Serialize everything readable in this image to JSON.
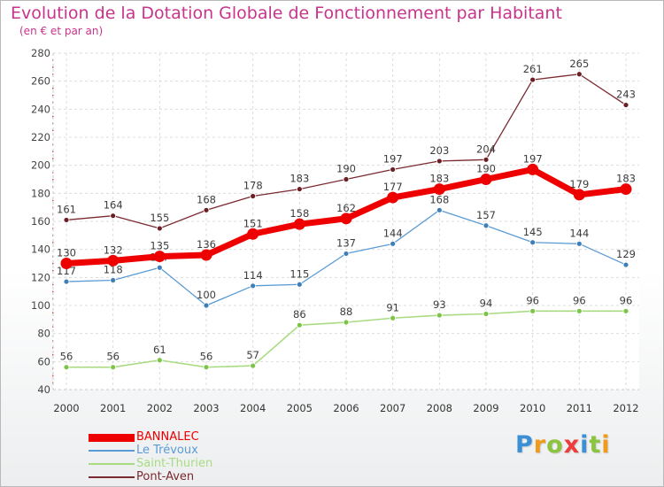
{
  "header": {
    "title": "Evolution de la Dotation Globale de Fonctionnement par Habitant",
    "subtitle": "(en € et par an)"
  },
  "brand": {
    "letters": [
      {
        "ch": "P",
        "color": "#3a8fd6"
      },
      {
        "ch": "r",
        "color": "#f19a1c"
      },
      {
        "ch": "o",
        "color": "#8cc43f"
      },
      {
        "ch": "x",
        "color": "#ee3b3b"
      },
      {
        "ch": "i",
        "color": "#3a8fd6"
      },
      {
        "ch": "t",
        "color": "#8cc43f"
      },
      {
        "ch": "i",
        "color": "#f19a1c"
      }
    ]
  },
  "chart_data": {
    "type": "line",
    "x": [
      "2000",
      "2001",
      "2002",
      "2003",
      "2004",
      "2005",
      "2006",
      "2007",
      "2008",
      "2009",
      "2010",
      "2011",
      "2012"
    ],
    "ylim": [
      40,
      280
    ],
    "yticks": [
      40,
      60,
      80,
      100,
      120,
      140,
      160,
      180,
      200,
      220,
      240,
      260,
      280
    ],
    "grid": true,
    "legend_position": "bottom-left",
    "series": [
      {
        "name": "Pont-Aven",
        "color": "#7a2a30",
        "marker_color": "#6b1e24",
        "width": 1.3,
        "marker_r": 3,
        "values": [
          161,
          164,
          155,
          168,
          178,
          183,
          190,
          197,
          203,
          204,
          261,
          265,
          243
        ]
      },
      {
        "name": "Le Trévoux",
        "color": "#5b9bd5",
        "marker_color": "#3f7fb8",
        "width": 1.3,
        "marker_r": 3,
        "values": [
          117,
          118,
          127,
          100,
          114,
          115,
          137,
          144,
          168,
          157,
          145,
          144,
          129
        ]
      },
      {
        "name": "Saint-Thurien",
        "color": "#a9dc82",
        "marker_color": "#7cc447",
        "width": 1.6,
        "marker_r": 3,
        "values": [
          56,
          56,
          61,
          56,
          57,
          86,
          88,
          91,
          93,
          94,
          96,
          96,
          96
        ]
      },
      {
        "name": "BANNALEC",
        "color": "#ee0000",
        "marker_color": "#ee0000",
        "width": 7,
        "marker_r": 6.5,
        "values": [
          130,
          132,
          135,
          136,
          151,
          158,
          162,
          177,
          183,
          190,
          197,
          179,
          183
        ]
      }
    ],
    "legend_order": [
      "BANNALEC",
      "Le Trévoux",
      "Saint-Thurien",
      "Pont-Aven"
    ]
  }
}
